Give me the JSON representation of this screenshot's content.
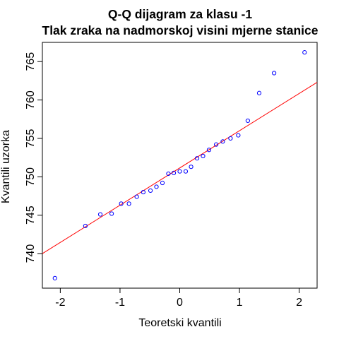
{
  "colors": {
    "points": "#0000ff",
    "reference_line": "#ff0000",
    "axes": "#000000",
    "background": "#ffffff"
  },
  "chart_data": {
    "type": "scatter",
    "title": "Q-Q dijagram za klasu -1",
    "subtitle": "Tlak zraka na nadmorskoj visini mjerne stanice",
    "xlabel": "Teoretski kvantili",
    "ylabel": "Kvantili uzorka",
    "xlim": [
      -2.3,
      2.3
    ],
    "ylim": [
      735.5,
      767.5
    ],
    "x_ticks": [
      -2,
      -1,
      0,
      1,
      2
    ],
    "x_tick_labels": [
      "-2",
      "-1",
      "0",
      "1",
      "2"
    ],
    "y_ticks": [
      740,
      745,
      750,
      755,
      760,
      765
    ],
    "y_tick_labels": [
      "740",
      "745",
      "750",
      "755",
      "760",
      "765"
    ],
    "grid": false,
    "legend": "none",
    "reference_line": {
      "x": [
        -2.3,
        2.3
      ],
      "y": [
        740.0,
        762.3
      ]
    },
    "series": [
      {
        "x": [
          -2.09,
          -1.58,
          -1.33,
          -1.14,
          -0.98,
          -0.85,
          -0.72,
          -0.61,
          -0.49,
          -0.39,
          -0.29,
          -0.19,
          -0.1,
          0.0,
          0.1,
          0.19,
          0.29,
          0.39,
          0.49,
          0.61,
          0.72,
          0.85,
          0.98,
          1.14,
          1.33,
          1.58,
          2.09
        ],
        "y": [
          736.8,
          743.6,
          745.1,
          745.2,
          746.5,
          746.5,
          747.4,
          748.0,
          748.2,
          748.7,
          749.2,
          750.4,
          750.5,
          750.7,
          750.7,
          751.3,
          752.4,
          752.7,
          753.5,
          754.2,
          754.6,
          755.0,
          755.4,
          757.3,
          760.9,
          763.5,
          766.2
        ]
      }
    ]
  }
}
